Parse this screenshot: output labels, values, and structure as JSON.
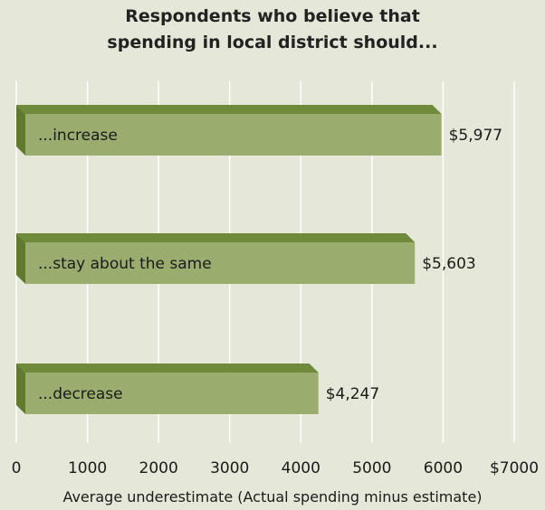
{
  "chart_data": {
    "type": "bar",
    "orientation": "horizontal",
    "title_lines": [
      "Respondents who believe that",
      "spending in local district should..."
    ],
    "categories": [
      "...increase",
      "...stay about the same",
      "...decrease"
    ],
    "values": [
      5977,
      5603,
      4247
    ],
    "value_labels": [
      "$5,977",
      "$5,603",
      "$4,247"
    ],
    "xticks": [
      0,
      1000,
      2000,
      3000,
      4000,
      5000,
      6000,
      7000
    ],
    "xtick_labels": [
      "0",
      "1000",
      "2000",
      "3000",
      "4000",
      "5000",
      "6000",
      "$7000"
    ],
    "xlim": [
      0,
      7000
    ],
    "xlabel": "Average underestimate (Actual spending minus estimate)",
    "ylabel": "",
    "grid": "vertical",
    "legend": "none",
    "colors": {
      "background": "#e5e8d9",
      "bar_front": "#9aad6f",
      "bar_top": "#6f8a3a",
      "bar_left": "#5f7a2e",
      "gridline": "#ffffff"
    }
  }
}
